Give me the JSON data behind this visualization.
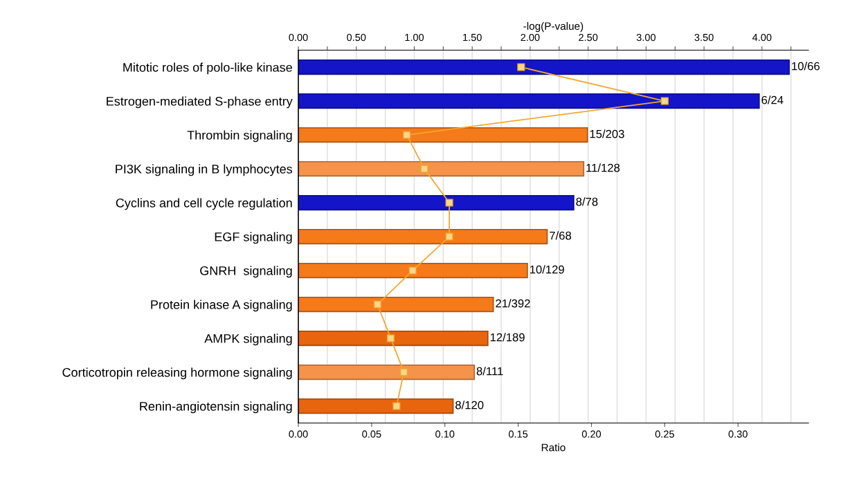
{
  "chart_data": {
    "type": "bar",
    "orientation": "horizontal",
    "categories": [
      "Mitotic roles of polo-like kinase",
      "Estrogen-mediated S-phase entry",
      "Thrombin signaling",
      "PI3K signaling in B lymphocytes",
      "Cyclins and cell cycle regulation",
      "EGF signaling",
      "GNRH  signaling",
      "Protein kinase A signaling",
      "AMPK signaling",
      "Corticotropin releasing hormone signaling",
      "Renin-angiotensin signaling"
    ],
    "series": [
      {
        "axis": "x2",
        "values": [
          4.235,
          3.976,
          2.494,
          2.462,
          2.376,
          2.147,
          1.976,
          1.682,
          1.635,
          1.518,
          1.335
        ],
        "colors": [
          "#1414c8",
          "#1414c8",
          "#f47a1a",
          "#f5934a",
          "#1414c8",
          "#f47a1a",
          "#f47a1a",
          "#f47a1a",
          "#e8650e",
          "#f5934a",
          "#e8650e"
        ],
        "value_labels": [
          "10/66",
          "6/24",
          "15/203",
          "11/128",
          "8/78",
          "7/68",
          "10/129",
          "21/392",
          "12/189",
          "8/111",
          "8/120"
        ]
      },
      {
        "type": "line",
        "color": "#f0a830",
        "marker": "square",
        "values": [
          0.152,
          0.25,
          0.074,
          0.086,
          0.103,
          0.103,
          0.078,
          0.054,
          0.063,
          0.072,
          0.067
        ]
      }
    ],
    "xlabel": "Ratio",
    "xlim": [
      0,
      0.348
    ],
    "xticks": [
      {
        "value": 0,
        "label": "0.00"
      },
      {
        "value": 0.05,
        "label": "0.05"
      },
      {
        "value": 0.1,
        "label": "0.10"
      },
      {
        "value": 0.15,
        "label": "0.15"
      },
      {
        "value": 0.2,
        "label": "0.20"
      },
      {
        "value": 0.25,
        "label": "0.25"
      },
      {
        "value": 0.3,
        "label": "0.30"
      }
    ],
    "x2label": "-log(P-value)",
    "x2lim": [
      0,
      4.4
    ],
    "x2ticks": [
      {
        "value": 0,
        "label": "0.00"
      },
      {
        "value": 0.25,
        "label": null
      },
      {
        "value": 0.5,
        "label": "0.50"
      },
      {
        "value": 0.75,
        "label": null
      },
      {
        "value": 1,
        "label": "1.00"
      },
      {
        "value": 1.25,
        "label": null
      },
      {
        "value": 1.5,
        "label": "1.50"
      },
      {
        "value": 1.75,
        "label": null
      },
      {
        "value": 2,
        "label": "2.00"
      },
      {
        "value": 2.25,
        "label": null
      },
      {
        "value": 2.5,
        "label": "2.50"
      },
      {
        "value": 2.75,
        "label": null
      },
      {
        "value": 3,
        "label": "3.00"
      },
      {
        "value": 3.25,
        "label": null
      },
      {
        "value": 3.5,
        "label": "3.50"
      },
      {
        "value": 3.75,
        "label": null
      },
      {
        "value": 4,
        "label": "4.00"
      },
      {
        "value": 4.25,
        "label": null
      }
    ],
    "grid": "x2"
  }
}
